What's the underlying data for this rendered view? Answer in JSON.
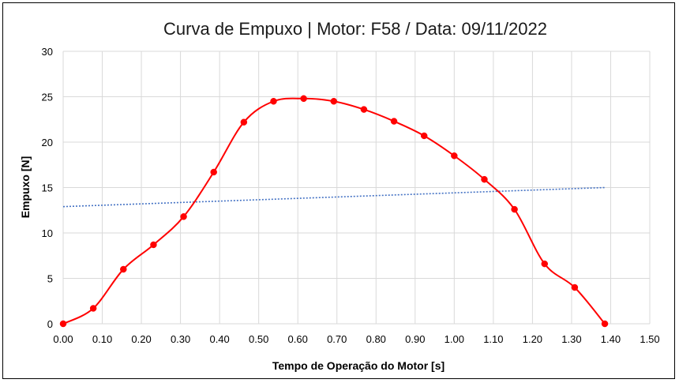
{
  "chart_data": {
    "type": "scatter",
    "title": "Curva de Empuxo | Motor: F58 / Data: 09/11/2022",
    "xlabel": "Tempo de Operação do Motor [s]",
    "ylabel": "Empuxo [N]",
    "xlim": [
      0,
      1.5
    ],
    "ylim": [
      0,
      30
    ],
    "x_ticks": [
      "0.00",
      "0.10",
      "0.20",
      "0.30",
      "0.40",
      "0.50",
      "0.60",
      "0.70",
      "0.80",
      "0.90",
      "1.00",
      "1.10",
      "1.20",
      "1.30",
      "1.40",
      "1.50"
    ],
    "x_tick_values": [
      0,
      0.1,
      0.2,
      0.3,
      0.4,
      0.5,
      0.6,
      0.7,
      0.8,
      0.9,
      1.0,
      1.1,
      1.2,
      1.3,
      1.4,
      1.5
    ],
    "y_ticks": [
      "0",
      "5",
      "10",
      "15",
      "20",
      "25",
      "30"
    ],
    "y_tick_values": [
      0,
      5,
      10,
      15,
      20,
      25,
      30
    ],
    "grid": true,
    "series": [
      {
        "style": "smoothed line with markers",
        "color": "#ff0000",
        "x": [
          0.0,
          0.077,
          0.154,
          0.231,
          0.308,
          0.385,
          0.462,
          0.538,
          0.615,
          0.692,
          0.769,
          0.846,
          0.923,
          1.0,
          1.077,
          1.154,
          1.231,
          1.308,
          1.385
        ],
        "y": [
          0.0,
          1.7,
          6.0,
          8.7,
          11.8,
          16.7,
          22.2,
          24.5,
          24.8,
          24.5,
          23.6,
          22.3,
          20.7,
          18.5,
          15.9,
          12.6,
          6.6,
          4.0,
          0.0
        ]
      },
      {
        "style": "dotted linear trendline",
        "color": "#4472c4",
        "x": [
          0.0,
          1.385
        ],
        "y": [
          12.9,
          15.0
        ]
      }
    ]
  }
}
